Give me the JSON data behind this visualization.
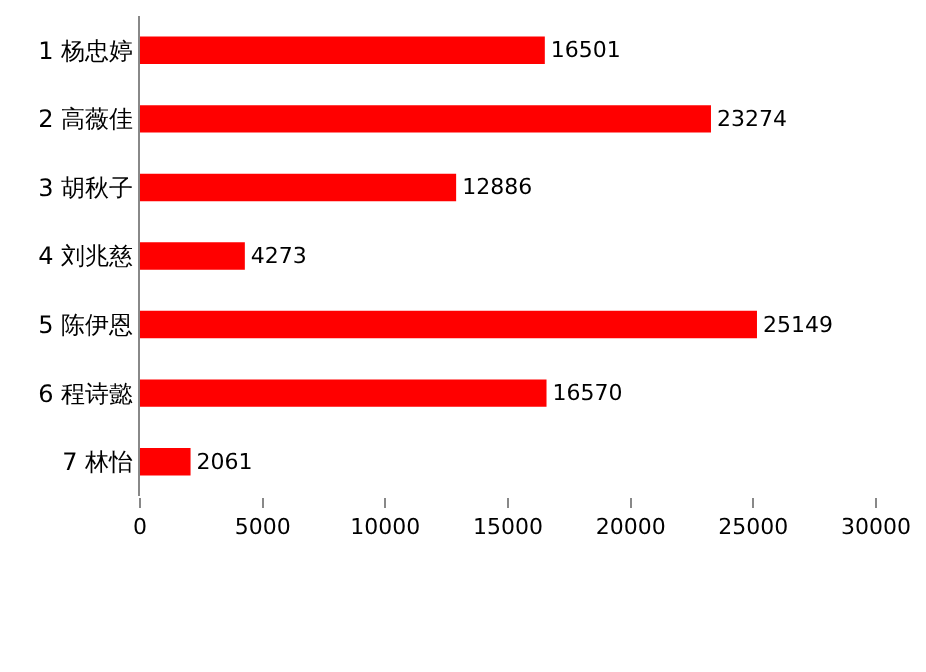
{
  "chart_data": {
    "type": "bar",
    "orientation": "horizontal",
    "categories": [
      "1 杨忠婷",
      "2 高薇佳",
      "3 胡秋子",
      "4 刘兆慈",
      "5 陈伊恩",
      "6 程诗懿",
      "7 林怡"
    ],
    "values": [
      16501,
      23274,
      12886,
      4273,
      25149,
      16570,
      2061
    ],
    "color": "#ff0000",
    "xlim": [
      0,
      30000
    ],
    "xticks": [
      0,
      5000,
      10000,
      15000,
      20000,
      25000,
      30000
    ],
    "grid": false,
    "data_labels": true
  }
}
